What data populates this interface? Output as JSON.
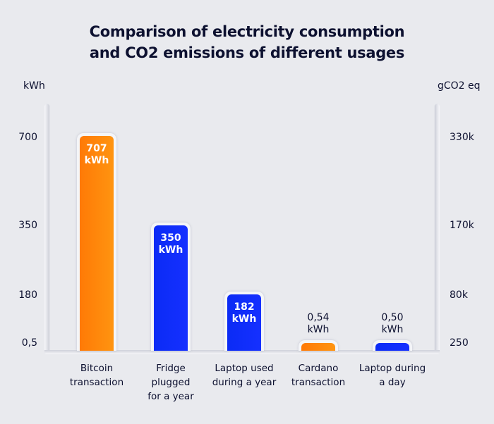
{
  "chart_data": {
    "type": "bar",
    "title": "Comparison of electricity consumption and CO2 emissions of different usages",
    "title_lines": [
      "Comparison of electricity consumption",
      "and CO2 emissions of different usages"
    ],
    "ylabel": "kWh",
    "ylabel_right": "gCO2 eq",
    "categories": [
      "Bitcoin\ntransaction",
      "Fridge\nplugged\nfor a year",
      "Laptop used\nduring a year",
      "Cardano\ntransaction",
      "Laptop during\na day"
    ],
    "values": [
      707,
      350,
      182,
      0.54,
      0.5
    ],
    "value_labels": [
      "707\nkWh",
      "350\nkWh",
      "182\nkWh",
      "0,54\nkWh",
      "0,50\nkWh"
    ],
    "bar_colors": [
      "#ff8008",
      "#0d2cf8",
      "#0d2cf8",
      "#ff8008",
      "#0d2cf8"
    ],
    "left_ticks": [
      {
        "label": "700",
        "value": 700
      },
      {
        "label": "350",
        "value": 350
      },
      {
        "label": "180",
        "value": 180
      },
      {
        "label": "0,5",
        "value": 0.5
      }
    ],
    "right_ticks": [
      {
        "label": "330k",
        "value": 700
      },
      {
        "label": "170k",
        "value": 350
      },
      {
        "label": "80k",
        "value": 180
      },
      {
        "label": "250",
        "value": 0.5
      }
    ],
    "ylim": [
      0,
      760
    ],
    "scale_note": "non-linear display; bars positioned by tick mapping",
    "grid": false,
    "legend": "none"
  }
}
